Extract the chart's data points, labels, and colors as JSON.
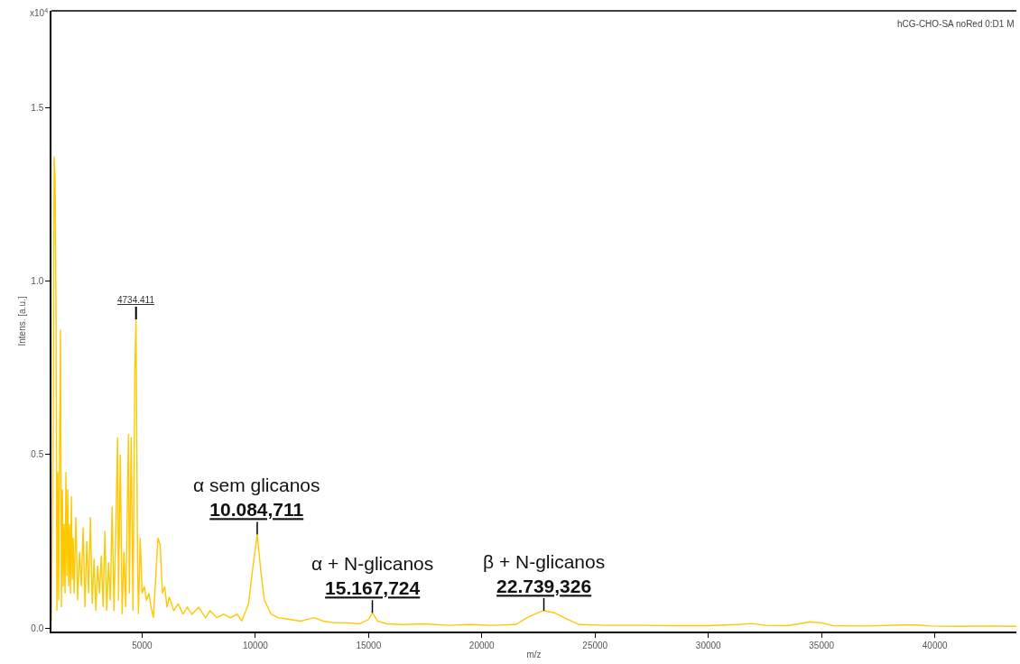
{
  "chart_data": {
    "type": "line",
    "ylabel": "Intens. [a.u.]",
    "xlabel": "m/z",
    "annotations": [
      "hCG-CHO-SA noRed 0:D1 M",
      "x10$^{4}$",
      {
        "text": "4734.411",
        "x": 4734,
        "y": 0.89
      },
      {
        "text": "α sem glicanos\n10.084,711",
        "x": 10084,
        "y": 0.27
      },
      {
        "text": "α + N-glicanos\n15.167,724",
        "x": 15167,
        "y": 0.044
      },
      {
        "text": "β + N-glicanos\n22.739,326",
        "x": 22739,
        "y": 0.05
      }
    ],
    "x": [
      1000,
      1080,
      1120,
      1160,
      1200,
      1240,
      1280,
      1320,
      1360,
      1400,
      1440,
      1480,
      1520,
      1560,
      1600,
      1640,
      1680,
      1720,
      1760,
      1800,
      1840,
      1880,
      1920,
      1960,
      2000,
      2080,
      2160,
      2240,
      2320,
      2400,
      2480,
      2560,
      2640,
      2720,
      2800,
      2880,
      2960,
      3040,
      3120,
      3200,
      3280,
      3360,
      3440,
      3520,
      3600,
      3680,
      3760,
      3840,
      3920,
      3960,
      4040,
      4120,
      4200,
      4280,
      4400,
      4440,
      4520,
      4600,
      4680,
      4734,
      4800,
      4840,
      4920,
      5000,
      5100,
      5200,
      5300,
      5400,
      5500,
      5600,
      5700,
      5800,
      5900,
      6000,
      6100,
      6200,
      6400,
      6600,
      6800,
      7000,
      7200,
      7500,
      7800,
      8000,
      8300,
      8600,
      8900,
      9200,
      9400,
      9700,
      9900,
      10084,
      10250,
      10400,
      10700,
      11000,
      11500,
      12000,
      12600,
      13000,
      13500,
      14000,
      14600,
      15000,
      15167,
      15400,
      15800,
      16500,
      17500,
      18500,
      19500,
      20500,
      21500,
      22000,
      22500,
      22739,
      23200,
      23800,
      24300,
      25500,
      27000,
      28500,
      30000,
      31300,
      31900,
      32500,
      33500,
      34000,
      34500,
      35000,
      35500,
      37000,
      38600,
      39200,
      39800,
      41000,
      42500,
      43600
    ],
    "series": [
      {
        "color": "#ffc800",
        "values": [
          0.02,
          0.6,
          1.36,
          1.3,
          0.94,
          0.05,
          0.45,
          0.08,
          0.55,
          0.86,
          0.06,
          0.4,
          0.12,
          0.3,
          0.1,
          0.45,
          0.15,
          0.4,
          0.12,
          0.3,
          0.1,
          0.38,
          0.14,
          0.26,
          0.1,
          0.32,
          0.08,
          0.22,
          0.12,
          0.29,
          0.06,
          0.25,
          0.1,
          0.32,
          0.07,
          0.2,
          0.05,
          0.18,
          0.1,
          0.21,
          0.06,
          0.28,
          0.05,
          0.19,
          0.08,
          0.35,
          0.05,
          0.28,
          0.55,
          0.08,
          0.5,
          0.04,
          0.22,
          0.06,
          0.56,
          0.1,
          0.55,
          0.05,
          0.74,
          0.89,
          0.2,
          0.04,
          0.26,
          0.1,
          0.12,
          0.08,
          0.1,
          0.06,
          0.03,
          0.14,
          0.26,
          0.24,
          0.1,
          0.12,
          0.06,
          0.09,
          0.05,
          0.07,
          0.04,
          0.06,
          0.04,
          0.06,
          0.03,
          0.05,
          0.03,
          0.04,
          0.03,
          0.04,
          0.02,
          0.07,
          0.18,
          0.27,
          0.16,
          0.08,
          0.04,
          0.03,
          0.025,
          0.02,
          0.03,
          0.02,
          0.015,
          0.015,
          0.012,
          0.025,
          0.044,
          0.02,
          0.012,
          0.01,
          0.012,
          0.008,
          0.01,
          0.008,
          0.01,
          0.03,
          0.045,
          0.05,
          0.044,
          0.025,
          0.01,
          0.008,
          0.008,
          0.007,
          0.007,
          0.01,
          0.013,
          0.008,
          0.007,
          0.012,
          0.018,
          0.015,
          0.007,
          0.006,
          0.009,
          0.009,
          0.006,
          0.005,
          0.006,
          0.005
        ]
      }
    ],
    "xlim": [
      1000,
      43600
    ],
    "ylim": [
      -0.01,
      1.78
    ],
    "xticks": [
      5000,
      10000,
      15000,
      20000,
      25000,
      30000,
      35000,
      40000
    ],
    "yticks": [
      {
        "value": 0,
        "label": "0.0"
      },
      {
        "value": 0.5,
        "label": "0.5"
      },
      {
        "value": 1,
        "label": "1.0"
      },
      {
        "value": 1.5,
        "label": "1.5"
      }
    ],
    "line_style": "solid"
  }
}
